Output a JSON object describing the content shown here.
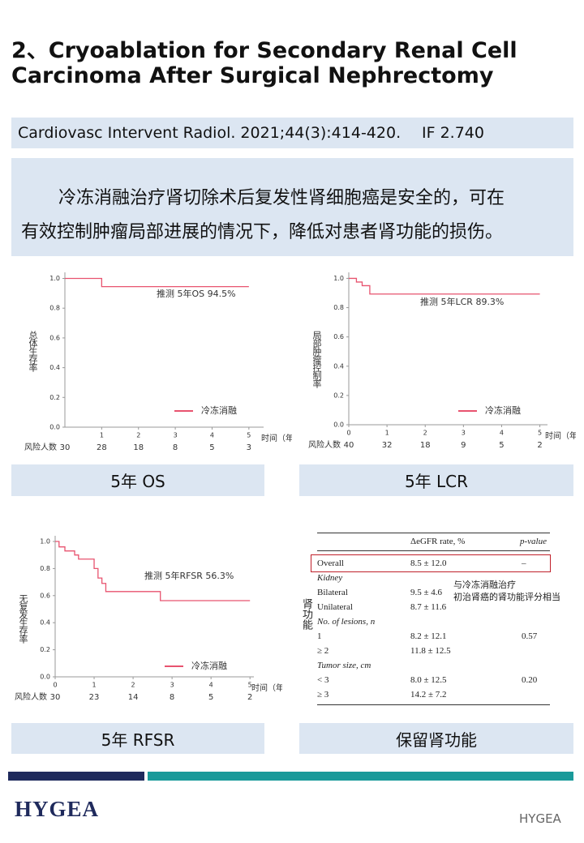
{
  "header": {
    "title_lines": [
      "2、Cryoablation for Secondary Renal Cell",
      "Carcinoma After Surgical Nephrectomy"
    ]
  },
  "citation": {
    "journal": "Cardiovasc Intervent Radiol. 2021;44(3):414-420.",
    "impact": "IF 2.740"
  },
  "summary": {
    "lines": [
      "冷冻消融治疗肾切除术后复发性肾细胞癌是安全的，可在",
      "有效控制肿瘤局部进展的情况下，降低对患者肾功能的损伤。"
    ]
  },
  "chart_data": [
    {
      "type": "line",
      "ylabel": "总体生存率",
      "xlabel": "时间（年）",
      "annotation": "推测 5年OS 94.5%",
      "x": [
        0,
        1,
        1,
        5
      ],
      "series": [
        {
          "name": "冷冻消融",
          "color": "#e8536f",
          "values": [
            1,
            1,
            0.945,
            0.945
          ]
        }
      ],
      "xlim": [
        0,
        5.4
      ],
      "ylim": [
        0,
        1.03
      ],
      "xticks": [
        1,
        2,
        3,
        4,
        5
      ],
      "yticks": [
        {
          "value": 0,
          "label": "0.0"
        },
        {
          "value": 0.2,
          "label": "0.2"
        },
        {
          "value": 0.4,
          "label": "0.4"
        },
        {
          "value": 0.6,
          "label": "0.6"
        },
        {
          "value": 0.8,
          "label": "0.8"
        },
        {
          "value": 1,
          "label": "1.0"
        }
      ],
      "risk_table": {
        "label": "风险人数",
        "values": [
          30,
          28,
          18,
          8,
          5,
          3
        ]
      }
    },
    {
      "type": "line",
      "ylabel": "局部肿瘤控制率",
      "xlabel": "时间（年）",
      "annotation": "推测 5年LCR 89.3%",
      "x": [
        0,
        0.2,
        0.2,
        0.35,
        0.35,
        0.55,
        0.55,
        5
      ],
      "series": [
        {
          "name": "冷冻消融",
          "color": "#e8536f",
          "values": [
            1,
            1,
            0.975,
            0.975,
            0.95,
            0.95,
            0.893,
            0.893
          ]
        }
      ],
      "xlim": [
        0,
        5.2
      ],
      "ylim": [
        0,
        1.03
      ],
      "xticks": [
        0,
        1,
        2,
        3,
        4,
        5
      ],
      "yticks": [
        {
          "value": 0,
          "label": "0.0"
        },
        {
          "value": 0.2,
          "label": "0.2"
        },
        {
          "value": 0.4,
          "label": "0.4"
        },
        {
          "value": 0.6,
          "label": "0.6"
        },
        {
          "value": 0.8,
          "label": "0.8"
        },
        {
          "value": 1,
          "label": "1.0"
        }
      ],
      "risk_table": {
        "label": "风险人数",
        "values": [
          40,
          32,
          18,
          9,
          5,
          2
        ]
      }
    },
    {
      "type": "line",
      "ylabel": "无复发生存率",
      "xlabel": "时间（年）",
      "annotation": "推测 5年RFSR 56.3%",
      "x": [
        0,
        0.1,
        0.1,
        0.25,
        0.25,
        0.5,
        0.5,
        0.6,
        0.6,
        1,
        1,
        1.1,
        1.1,
        1.2,
        1.2,
        1.3,
        1.3,
        2.7,
        2.7,
        5
      ],
      "series": [
        {
          "name": "冷冻消融",
          "color": "#e8536f",
          "values": [
            1,
            1,
            0.96,
            0.96,
            0.93,
            0.93,
            0.9,
            0.9,
            0.87,
            0.87,
            0.8,
            0.8,
            0.73,
            0.73,
            0.69,
            0.69,
            0.63,
            0.63,
            0.563,
            0.563
          ]
        }
      ],
      "xlim": [
        0,
        5.1
      ],
      "ylim": [
        0,
        1.03
      ],
      "xticks": [
        0,
        1,
        2,
        3,
        4,
        5
      ],
      "yticks": [
        {
          "value": 0,
          "label": "0.0"
        },
        {
          "value": 0.2,
          "label": "0.2"
        },
        {
          "value": 0.4,
          "label": "0.4"
        },
        {
          "value": 0.6,
          "label": "0.6"
        },
        {
          "value": 0.8,
          "label": "0.8"
        },
        {
          "value": 1,
          "label": "1.0"
        }
      ],
      "risk_table": {
        "label": "风险人数",
        "values": [
          30,
          23,
          14,
          8,
          5,
          2
        ]
      }
    }
  ],
  "captions": [
    "5年 OS",
    "5年 LCR",
    "5年 RFSR",
    "保留肾功能"
  ],
  "renal": {
    "side_label": "肾功能",
    "note_lines": [
      "与冷冻消融治疗",
      "初治肾癌的肾功能评分相当"
    ],
    "table": {
      "header": [
        "ΔeGFR rate, %",
        "p-value"
      ],
      "rows": [
        [
          "Overall",
          "8.5 ± 12.0",
          "–"
        ],
        [
          "Kidney"
        ],
        [
          "Bilateral",
          "9.5 ± 4.6"
        ],
        [
          "Unilateral",
          "8.7 ± 11.6"
        ],
        [
          "No. of lesions, n"
        ],
        [
          "1",
          "8.2 ± 12.1",
          "0.57"
        ],
        [
          "≥ 2",
          "11.8 ± 12.5"
        ],
        [
          "Tumor size, cm"
        ],
        [
          "< 3",
          "8.0 ± 12.5",
          "0.20"
        ],
        [
          "≥ 3",
          "14.2 ± 7.2"
        ]
      ]
    }
  },
  "footer": {
    "logo": "HYGEA",
    "watermark": "HYGEA"
  }
}
